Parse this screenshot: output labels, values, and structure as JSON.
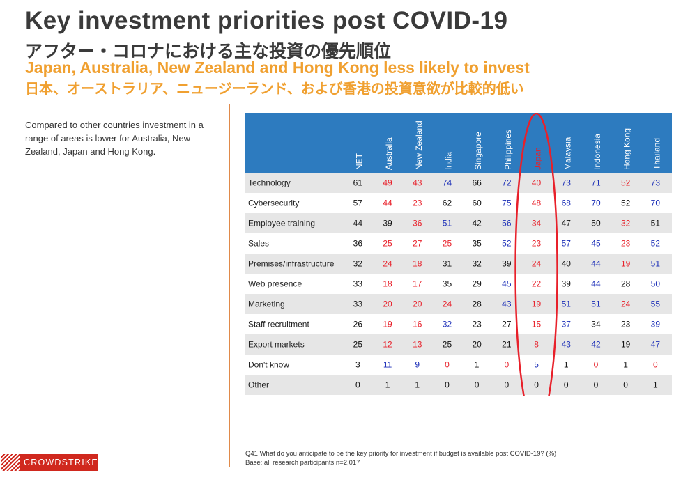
{
  "page": {
    "title": "Key investment priorities post COVID-19",
    "title_jp": "アフター・コロナにおける主な投資の優先順位",
    "subtitle": "Japan, Australia, New Zealand and Hong Kong less likely to invest",
    "subtitle_jp": "日本、オーストラリア、ニュージーランド、および香港の投資意欲が比較的低い",
    "description": "Compared to other countries investment in a range of areas is lower for Australia, New Zealand, Japan and Hong Kong.",
    "footnote_question": "Q41 What do you anticipate to be the key priority for investment if budget is available post COVID-19? (%)",
    "footnote_base": "Base: all research participants n=2,017",
    "logo": "CROWDSTRIKE"
  },
  "colors": {
    "header_bg": "#2d7bbf",
    "stripe": "#e6e6e6",
    "low": "#e8202a",
    "high": "#1c2fb8",
    "neutral": "#111111",
    "highlight_ellipse": "#e8202a"
  },
  "chart_data": {
    "type": "table",
    "columns": [
      "NET",
      "Australia",
      "New Zealand",
      "India",
      "Singapore",
      "Philippines",
      "Japan",
      "Malaysia",
      "Indonesia",
      "Hong Kong",
      "Thailand"
    ],
    "highlight_column": "Japan",
    "rows": [
      {
        "label": "Technology",
        "values": [
          61,
          49,
          43,
          74,
          66,
          72,
          40,
          73,
          71,
          52,
          73
        ],
        "flags": [
          "n",
          "l",
          "l",
          "h",
          "n",
          "h",
          "l",
          "h",
          "h",
          "l",
          "h"
        ]
      },
      {
        "label": "Cybersecurity",
        "values": [
          57,
          44,
          23,
          62,
          60,
          75,
          48,
          68,
          70,
          52,
          70
        ],
        "flags": [
          "n",
          "l",
          "l",
          "n",
          "n",
          "h",
          "l",
          "h",
          "h",
          "n",
          "h"
        ]
      },
      {
        "label": "Employee training",
        "values": [
          44,
          39,
          36,
          51,
          42,
          56,
          34,
          47,
          50,
          32,
          51
        ],
        "flags": [
          "n",
          "n",
          "l",
          "h",
          "n",
          "h",
          "l",
          "n",
          "n",
          "l",
          "n"
        ]
      },
      {
        "label": "Sales",
        "values": [
          36,
          25,
          27,
          25,
          35,
          52,
          23,
          57,
          45,
          23,
          52
        ],
        "flags": [
          "n",
          "l",
          "l",
          "l",
          "n",
          "h",
          "l",
          "h",
          "h",
          "l",
          "h"
        ]
      },
      {
        "label": "Premises/infrastructure",
        "values": [
          32,
          24,
          18,
          31,
          32,
          39,
          24,
          40,
          44,
          19,
          51
        ],
        "flags": [
          "n",
          "l",
          "l",
          "n",
          "n",
          "n",
          "l",
          "n",
          "h",
          "l",
          "h"
        ]
      },
      {
        "label": "Web presence",
        "values": [
          33,
          18,
          17,
          35,
          29,
          45,
          22,
          39,
          44,
          28,
          50
        ],
        "flags": [
          "n",
          "l",
          "l",
          "n",
          "n",
          "h",
          "l",
          "n",
          "h",
          "n",
          "h"
        ]
      },
      {
        "label": "Marketing",
        "values": [
          33,
          20,
          20,
          24,
          28,
          43,
          19,
          51,
          51,
          24,
          55
        ],
        "flags": [
          "n",
          "l",
          "l",
          "l",
          "n",
          "h",
          "l",
          "h",
          "h",
          "l",
          "h"
        ]
      },
      {
        "label": "Staff recruitment",
        "values": [
          26,
          19,
          16,
          32,
          23,
          27,
          15,
          37,
          34,
          23,
          39
        ],
        "flags": [
          "n",
          "l",
          "l",
          "h",
          "n",
          "n",
          "l",
          "h",
          "n",
          "n",
          "h"
        ]
      },
      {
        "label": "Export markets",
        "values": [
          25,
          12,
          13,
          25,
          20,
          21,
          8,
          43,
          42,
          19,
          47
        ],
        "flags": [
          "n",
          "l",
          "l",
          "n",
          "n",
          "n",
          "l",
          "h",
          "h",
          "n",
          "h"
        ]
      },
      {
        "label": "Don't know",
        "values": [
          3,
          11,
          9,
          0,
          1,
          0,
          5,
          1,
          0,
          1,
          0
        ],
        "flags": [
          "n",
          "h",
          "h",
          "l",
          "n",
          "l",
          "h",
          "n",
          "l",
          "n",
          "l"
        ]
      },
      {
        "label": "Other",
        "values": [
          0,
          1,
          1,
          0,
          0,
          0,
          0,
          0,
          0,
          0,
          1
        ],
        "flags": [
          "n",
          "n",
          "n",
          "n",
          "n",
          "n",
          "n",
          "n",
          "n",
          "n",
          "n"
        ]
      }
    ]
  }
}
